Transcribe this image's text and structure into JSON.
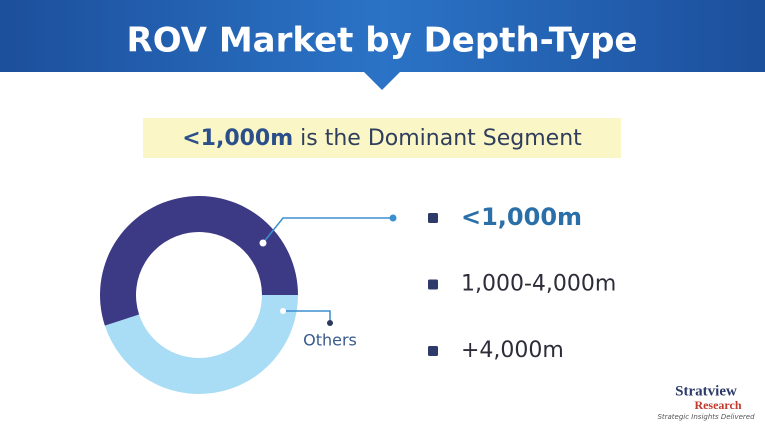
{
  "chart_data": {
    "type": "donut",
    "title": "ROV Market by Depth-Type",
    "subtitle_highlight": "<1,000m",
    "subtitle": "is the Dominant Segment",
    "categories": [
      "<1,000m",
      "Others"
    ],
    "values": [
      55,
      45
    ],
    "colors": [
      "#3d3a85",
      "#a9dcf5"
    ],
    "legend": [
      "<1,000m",
      "1,000-4,000m",
      "+4,000m"
    ],
    "logo": {
      "name": "Stratview",
      "sub": "Research",
      "tagline": "Strategic Insights Delivered"
    }
  }
}
